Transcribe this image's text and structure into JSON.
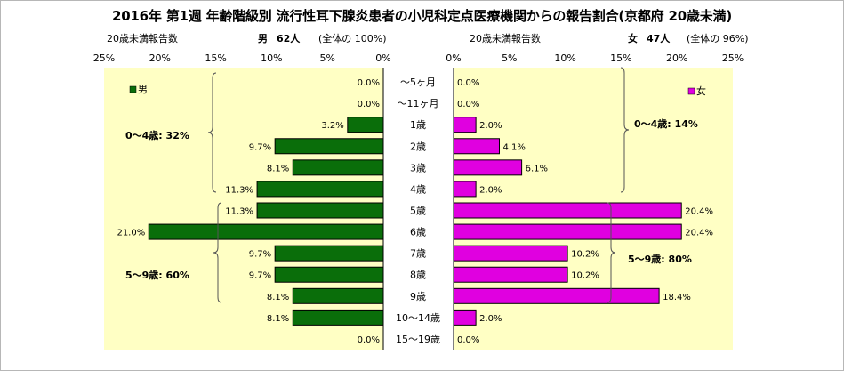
{
  "title": "2016年 第1週 年齢階級別 流行性耳下腺炎患者の小児科定点医療機関からの報告割合(京都府 20歳未満)",
  "left_header": {
    "label": "20歳未満報告数",
    "sex": "男",
    "count": "62人",
    "share": "(全体の 100%)"
  },
  "right_header": {
    "label": "20歳未満報告数",
    "sex": "女",
    "count": "47人",
    "share": "(全体の 96%)"
  },
  "colors": {
    "male": "#0a6e0a",
    "female": "#e000e0",
    "plot_bg": "#ffffc4",
    "bar_border": "#000000"
  },
  "chart_data": {
    "type": "bar",
    "orientation": "horizontal-population-pyramid",
    "categories": [
      "〜5ヶ月",
      "〜11ヶ月",
      "1歳",
      "2歳",
      "3歳",
      "4歳",
      "5歳",
      "6歳",
      "7歳",
      "8歳",
      "9歳",
      "10〜14歳",
      "15〜19歳"
    ],
    "xlim": [
      0,
      25
    ],
    "x_ticks": [
      "0%",
      "5%",
      "10%",
      "15%",
      "20%",
      "25%"
    ],
    "series": [
      {
        "name": "男",
        "side": "left",
        "values": [
          0.0,
          0.0,
          3.2,
          9.7,
          8.1,
          11.3,
          11.3,
          21.0,
          9.7,
          9.7,
          8.1,
          8.1,
          0.0
        ],
        "labels": [
          "0.0%",
          "0.0%",
          "3.2%",
          "9.7%",
          "8.1%",
          "11.3%",
          "11.3%",
          "21.0%",
          "9.7%",
          "9.7%",
          "8.1%",
          "8.1%",
          "0.0%"
        ]
      },
      {
        "name": "女",
        "side": "right",
        "values": [
          0.0,
          0.0,
          2.0,
          4.1,
          6.1,
          2.0,
          20.4,
          20.4,
          10.2,
          10.2,
          18.4,
          2.0,
          0.0
        ],
        "labels": [
          "0.0%",
          "0.0%",
          "2.0%",
          "4.1%",
          "6.1%",
          "2.0%",
          "20.4%",
          "20.4%",
          "10.2%",
          "10.2%",
          "18.4%",
          "2.0%",
          "0.0%"
        ]
      }
    ],
    "legend": {
      "male": "男",
      "female": "女"
    },
    "legend_placement": "top-outer corners of each panel",
    "annotations": {
      "male_0_4": "0〜4歳: 32%",
      "male_5_9": "5〜9歳: 60%",
      "female_0_4": "0〜4歳: 14%",
      "female_5_9": "5〜9歳: 80%"
    },
    "grid": false
  }
}
